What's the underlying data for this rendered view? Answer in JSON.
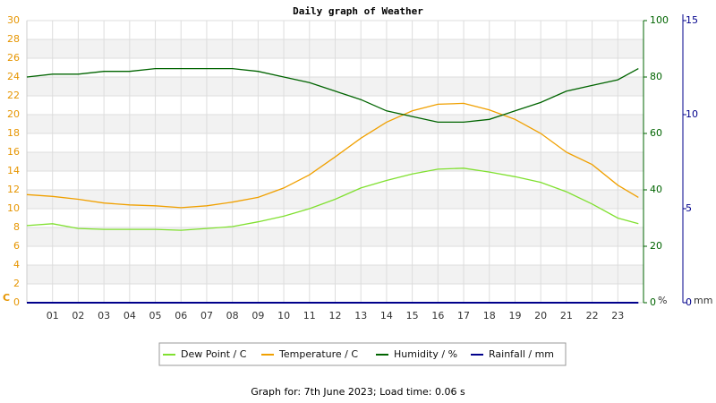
{
  "chart_data": {
    "type": "line",
    "title": "Daily graph of Weather",
    "x": [
      0,
      1,
      2,
      3,
      4,
      5,
      6,
      7,
      8,
      9,
      10,
      11,
      12,
      13,
      14,
      15,
      16,
      17,
      18,
      19,
      20,
      21,
      22,
      23,
      23.8
    ],
    "xlim": [
      0,
      24
    ],
    "xticks": [
      {
        "value": 1,
        "label": "01"
      },
      {
        "value": 2,
        "label": "02"
      },
      {
        "value": 3,
        "label": "03"
      },
      {
        "value": 4,
        "label": "04"
      },
      {
        "value": 5,
        "label": "05"
      },
      {
        "value": 6,
        "label": "06"
      },
      {
        "value": 7,
        "label": "07"
      },
      {
        "value": 8,
        "label": "08"
      },
      {
        "value": 9,
        "label": "09"
      },
      {
        "value": 10,
        "label": "10"
      },
      {
        "value": 11,
        "label": "11"
      },
      {
        "value": 12,
        "label": "12"
      },
      {
        "value": 13,
        "label": "13"
      },
      {
        "value": 14,
        "label": "14"
      },
      {
        "value": 15,
        "label": "15"
      },
      {
        "value": 16,
        "label": "16"
      },
      {
        "value": 17,
        "label": "17"
      },
      {
        "value": 18,
        "label": "18"
      },
      {
        "value": 19,
        "label": "19"
      },
      {
        "value": 20,
        "label": "20"
      },
      {
        "value": 21,
        "label": "21"
      },
      {
        "value": 22,
        "label": "22"
      },
      {
        "value": 23,
        "label": "23"
      }
    ],
    "ylim": [
      0,
      30
    ],
    "yticks": [
      0,
      2,
      4,
      6,
      8,
      10,
      12,
      14,
      16,
      18,
      20,
      22,
      24,
      26,
      28,
      30
    ],
    "y_unit": "C",
    "y2lim": [
      0,
      100
    ],
    "y2ticks": [
      0,
      20,
      40,
      60,
      80,
      100
    ],
    "y2_unit": "%",
    "y3lim": [
      0,
      15
    ],
    "y3ticks": [
      0,
      5,
      10,
      15
    ],
    "y3_unit": "mm",
    "grid": true,
    "series": [
      {
        "name": "Dew Point / C",
        "color": "#80e030",
        "axis": "y",
        "values": [
          8.2,
          8.4,
          7.9,
          7.8,
          7.8,
          7.8,
          7.7,
          7.9,
          8.1,
          8.6,
          9.2,
          10.0,
          11.0,
          12.2,
          13.0,
          13.7,
          14.2,
          14.3,
          13.9,
          13.4,
          12.8,
          11.8,
          10.5,
          9.0,
          8.4
        ]
      },
      {
        "name": "Temperature / C",
        "color": "#f0a000",
        "axis": "y",
        "values": [
          11.5,
          11.3,
          11.0,
          10.6,
          10.4,
          10.3,
          10.1,
          10.3,
          10.7,
          11.2,
          12.2,
          13.6,
          15.5,
          17.5,
          19.2,
          20.4,
          21.1,
          21.2,
          20.5,
          19.5,
          18.0,
          16.0,
          14.7,
          12.5,
          11.2
        ]
      },
      {
        "name": "Humidity / %",
        "color": "#006400",
        "axis": "y2",
        "values": [
          80,
          81,
          81,
          82,
          82,
          83,
          83,
          83,
          83,
          82,
          80,
          78,
          75,
          72,
          68,
          66,
          64,
          64,
          65,
          68,
          71,
          75,
          77,
          79,
          83
        ]
      },
      {
        "name": "Rainfall / mm",
        "color": "#00008b",
        "axis": "y3",
        "values": [
          0,
          0,
          0,
          0,
          0,
          0,
          0,
          0,
          0,
          0,
          0,
          0,
          0,
          0,
          0,
          0,
          0,
          0,
          0,
          0,
          0,
          0,
          0,
          0,
          0
        ]
      }
    ],
    "footer": "Graph for: 7th June 2023; Load time: 0.06 s"
  }
}
